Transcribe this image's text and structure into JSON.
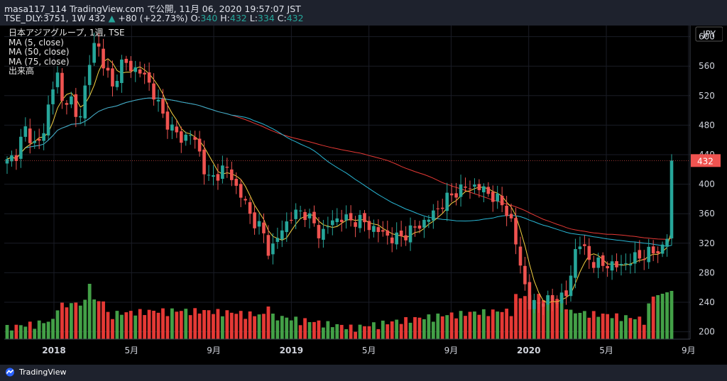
{
  "header": {
    "line1": "masa117_114 TradingView.com で公開, 11月 06, 2020 19:57:07 JST",
    "symbol": "TSE_DLY:3751, 1W 432",
    "arrow": "▲",
    "change": "+80 (+22.73%)",
    "ohlc_o_label": "O:",
    "ohlc_o": "340",
    "ohlc_h_label": "H:",
    "ohlc_h": "432",
    "ohlc_l_label": "L:",
    "ohlc_l": "334",
    "ohlc_c_label": "C:",
    "ohlc_c": "432"
  },
  "legend": {
    "title": "日本アジアグループ, 1週, TSE",
    "ma5": "MA (5, close)",
    "ma50": "MA (50, close)",
    "ma75": "MA (75, close)",
    "volume": "出来高"
  },
  "footer": {
    "brand": "TradingView",
    "icon": "tradingview-logo-icon"
  },
  "colors": {
    "up": "#26a69a",
    "down": "#ef5350",
    "vol_up": "#43a047",
    "vol_down": "#e53935",
    "ma5": "#f5d142",
    "ma50": "#29b6d4",
    "ma75": "#e53935",
    "bg": "#000000"
  },
  "chart_data": {
    "type": "candlestick",
    "title": "日本アジアグループ, 1週, TSE",
    "currency": "JPY",
    "ylim": [
      190,
      615
    ],
    "y_ticks": [
      "200",
      "240",
      "280",
      "320",
      "360",
      "400",
      "440",
      "480",
      "520",
      "560",
      "600"
    ],
    "x_ticks": [
      "2018",
      "5月",
      "9月",
      "2019",
      "5月",
      "9月",
      "2020",
      "5月",
      "9月"
    ],
    "last_price": "432",
    "grid": true,
    "series": [
      {
        "name": "MA (5, close)"
      },
      {
        "name": "MA (50, close)"
      },
      {
        "name": "MA (75, close)"
      },
      {
        "name": "出来高"
      }
    ],
    "anchors": [
      [
        0,
        430
      ],
      [
        3,
        440
      ],
      [
        6,
        475
      ],
      [
        9,
        455
      ],
      [
        12,
        460
      ],
      [
        15,
        530
      ],
      [
        17,
        548
      ],
      [
        19,
        500
      ],
      [
        21,
        530
      ],
      [
        23,
        485
      ],
      [
        25,
        500
      ],
      [
        27,
        545
      ],
      [
        30,
        600
      ],
      [
        32,
        570
      ],
      [
        34,
        550
      ],
      [
        36,
        525
      ],
      [
        38,
        565
      ],
      [
        41,
        560
      ],
      [
        44,
        555
      ],
      [
        47,
        545
      ],
      [
        50,
        520
      ],
      [
        53,
        490
      ],
      [
        56,
        475
      ],
      [
        59,
        460
      ],
      [
        62,
        470
      ],
      [
        65,
        445
      ],
      [
        68,
        405
      ],
      [
        71,
        412
      ],
      [
        74,
        425
      ],
      [
        77,
        400
      ],
      [
        80,
        380
      ],
      [
        82,
        360
      ],
      [
        84,
        348
      ],
      [
        86,
        340
      ],
      [
        88,
        320
      ],
      [
        89,
        300
      ],
      [
        90,
        315
      ],
      [
        92,
        330
      ],
      [
        94,
        345
      ],
      [
        96,
        355
      ],
      [
        98,
        360
      ],
      [
        100,
        365
      ],
      [
        102,
        355
      ],
      [
        104,
        345
      ],
      [
        106,
        330
      ],
      [
        108,
        340
      ],
      [
        110,
        350
      ],
      [
        113,
        355
      ],
      [
        116,
        350
      ],
      [
        119,
        352
      ],
      [
        122,
        345
      ],
      [
        125,
        338
      ],
      [
        128,
        332
      ],
      [
        131,
        325
      ],
      [
        134,
        330
      ],
      [
        137,
        338
      ],
      [
        140,
        345
      ],
      [
        143,
        355
      ],
      [
        146,
        368
      ],
      [
        149,
        380
      ],
      [
        152,
        390
      ],
      [
        155,
        395
      ],
      [
        158,
        398
      ],
      [
        161,
        393
      ],
      [
        164,
        385
      ],
      [
        167,
        375
      ],
      [
        170,
        360
      ],
      [
        173,
        305
      ],
      [
        175,
        270
      ],
      [
        177,
        232
      ],
      [
        179,
        238
      ],
      [
        181,
        242
      ],
      [
        183,
        240
      ],
      [
        186,
        245
      ],
      [
        188,
        248
      ],
      [
        190,
        250
      ],
      [
        192,
        310
      ],
      [
        194,
        320
      ],
      [
        196,
        305
      ],
      [
        198,
        295
      ],
      [
        201,
        290
      ],
      [
        204,
        292
      ],
      [
        207,
        288
      ],
      [
        210,
        295
      ],
      [
        213,
        300
      ],
      [
        216,
        305
      ],
      [
        219,
        308
      ],
      [
        221,
        312
      ],
      [
        223,
        318
      ],
      [
        224,
        340
      ],
      [
        225,
        432
      ]
    ]
  }
}
